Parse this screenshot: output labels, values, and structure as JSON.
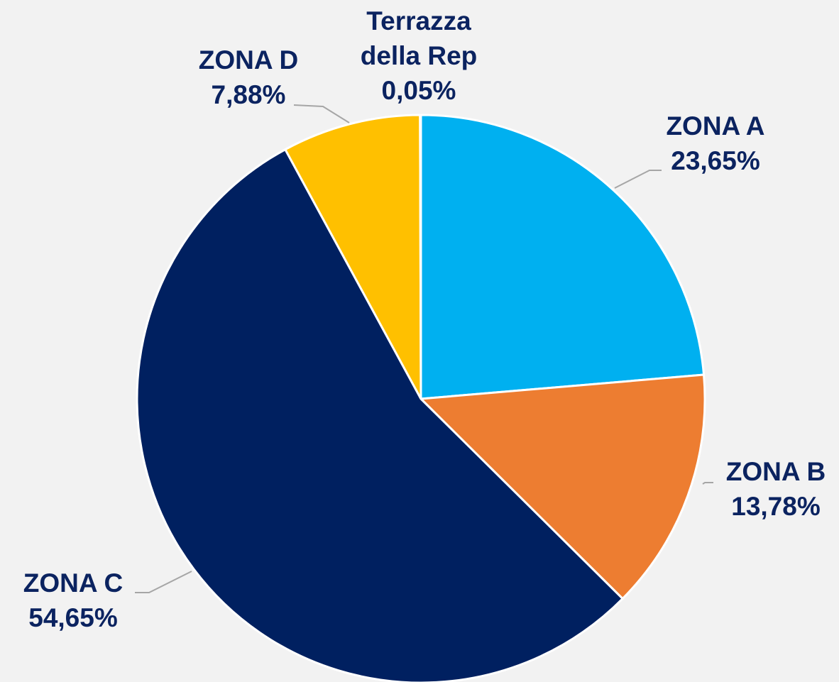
{
  "chart_data": {
    "type": "pie",
    "categories": [
      "ZONA A",
      "ZONA B",
      "ZONA C",
      "ZONA D",
      "Terrazza della Rep"
    ],
    "values": [
      23.65,
      13.78,
      54.65,
      7.88,
      0.05
    ],
    "value_labels": [
      "23,65%",
      "13,78%",
      "54,65%",
      "7,88%",
      "0,05%"
    ],
    "colors": [
      "#00b0f0",
      "#ed7d31",
      "#002060",
      "#ffc000",
      "#a5a5a5"
    ]
  }
}
